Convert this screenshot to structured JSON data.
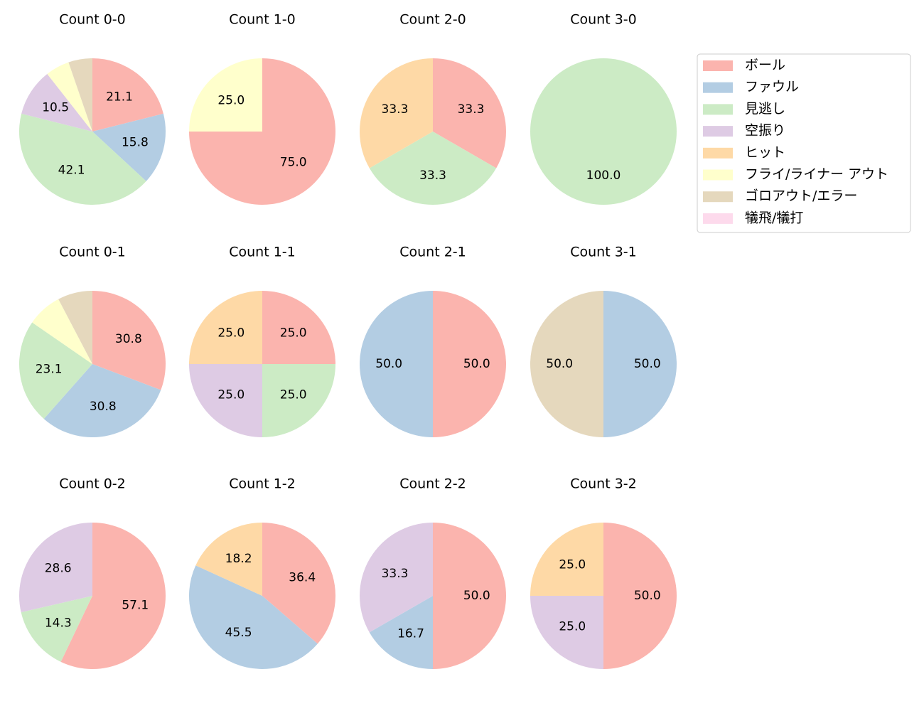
{
  "legend": {
    "labels": [
      "ボール",
      "ファウル",
      "見逃し",
      "空振り",
      "ヒット",
      "フライ/ライナー アウト",
      "ゴロアウト/エラー",
      "犠飛/犠打"
    ],
    "colors": [
      "#fbb4ae",
      "#b3cde3",
      "#ccebc5",
      "#decbe4",
      "#fed9a6",
      "#ffffcc",
      "#e5d8bd",
      "#fddaec"
    ]
  },
  "chart_data": [
    {
      "type": "pie",
      "title": "Count 0-0",
      "categories": [
        "ボール",
        "ファウル",
        "見逃し",
        "空振り",
        "フライ/ライナー アウト",
        "ゴロアウト/エラー"
      ],
      "values": [
        21.1,
        15.8,
        42.1,
        10.5,
        5.3,
        5.3
      ],
      "value_labels": [
        "21.1",
        "15.8",
        "42.1",
        "10.5",
        null,
        null
      ]
    },
    {
      "type": "pie",
      "title": "Count 1-0",
      "categories": [
        "ボール",
        "フライ/ライナー アウト"
      ],
      "values": [
        75.0,
        25.0
      ],
      "value_labels": [
        "75.0",
        "25.0"
      ]
    },
    {
      "type": "pie",
      "title": "Count 2-0",
      "categories": [
        "ボール",
        "見逃し",
        "ヒット"
      ],
      "values": [
        33.3,
        33.3,
        33.3
      ],
      "value_labels": [
        "33.3",
        "33.3",
        "33.3"
      ]
    },
    {
      "type": "pie",
      "title": "Count 3-0",
      "categories": [
        "見逃し"
      ],
      "values": [
        100.0
      ],
      "value_labels": [
        "100.0"
      ]
    },
    {
      "type": "pie",
      "title": "Count 0-1",
      "categories": [
        "ボール",
        "ファウル",
        "見逃し",
        "フライ/ライナー アウト",
        "ゴロアウト/エラー"
      ],
      "values": [
        30.8,
        30.8,
        23.1,
        7.7,
        7.7
      ],
      "value_labels": [
        "30.8",
        "30.8",
        "23.1",
        null,
        null
      ]
    },
    {
      "type": "pie",
      "title": "Count 1-1",
      "categories": [
        "ボール",
        "見逃し",
        "空振り",
        "ヒット"
      ],
      "values": [
        25.0,
        25.0,
        25.0,
        25.0
      ],
      "value_labels": [
        "25.0",
        "25.0",
        "25.0",
        "25.0"
      ]
    },
    {
      "type": "pie",
      "title": "Count 2-1",
      "categories": [
        "ボール",
        "ファウル"
      ],
      "values": [
        50.0,
        50.0
      ],
      "value_labels": [
        "50.0",
        "50.0"
      ]
    },
    {
      "type": "pie",
      "title": "Count 3-1",
      "categories": [
        "ファウル",
        "ゴロアウト/エラー"
      ],
      "values": [
        50.0,
        50.0
      ],
      "value_labels": [
        "50.0",
        "50.0"
      ]
    },
    {
      "type": "pie",
      "title": "Count 0-2",
      "categories": [
        "ボール",
        "見逃し",
        "空振り"
      ],
      "values": [
        57.1,
        14.3,
        28.6
      ],
      "value_labels": [
        "57.1",
        "14.3",
        "28.6"
      ]
    },
    {
      "type": "pie",
      "title": "Count 1-2",
      "categories": [
        "ボール",
        "ファウル",
        "ヒット"
      ],
      "values": [
        36.4,
        45.5,
        18.2
      ],
      "value_labels": [
        "36.4",
        "45.5",
        "18.2"
      ]
    },
    {
      "type": "pie",
      "title": "Count 2-2",
      "categories": [
        "ボール",
        "ファウル",
        "空振り"
      ],
      "values": [
        50.0,
        16.7,
        33.3
      ],
      "value_labels": [
        "50.0",
        "16.7",
        "33.3"
      ]
    },
    {
      "type": "pie",
      "title": "Count 3-2",
      "categories": [
        "ボール",
        "空振り",
        "ヒット"
      ],
      "values": [
        50.0,
        25.0,
        25.0
      ],
      "value_labels": [
        "50.0",
        "25.0",
        "25.0"
      ]
    }
  ]
}
